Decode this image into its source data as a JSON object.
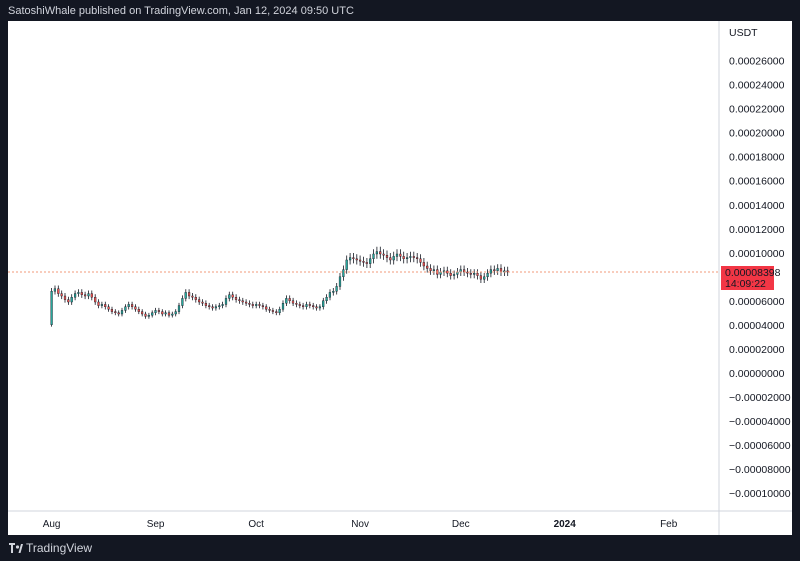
{
  "header": {
    "publisher_line": "SatoshiWhale published on TradingView.com, Jan 12, 2024 09:50 UTC"
  },
  "footer": {
    "brand": "TradingView",
    "logo_icon": "tradingview-logo-icon"
  },
  "colors": {
    "up": "#26a69a",
    "down": "#ef5350",
    "price_line": "#f0997a",
    "price_label": "#f23645"
  },
  "chart_data": {
    "type": "candlestick",
    "currency_label": "USDT",
    "y_ticks": [
      "0.00026000",
      "0.00024000",
      "0.00022000",
      "0.00020000",
      "0.00018000",
      "0.00016000",
      "0.00014000",
      "0.00012000",
      "0.00010000",
      "0.00006000",
      "0.00004000",
      "0.00002000",
      "0.00000000",
      "−0.00002000",
      "−0.00004000",
      "−0.00006000",
      "−0.00008000",
      "−0.00010000"
    ],
    "y_tick_values": [
      0.00026,
      0.00024,
      0.00022,
      0.0002,
      0.00018,
      0.00016,
      0.00014,
      0.00012,
      0.0001,
      6e-05,
      4e-05,
      2e-05,
      0,
      -2e-05,
      -4e-05,
      -6e-05,
      -8e-05,
      -0.0001
    ],
    "ylim": [
      -0.000115,
      0.000293
    ],
    "x_ticks": [
      {
        "label": "Aug",
        "day": 0
      },
      {
        "label": "Sep",
        "day": 31
      },
      {
        "label": "Oct",
        "day": 61
      },
      {
        "label": "Nov",
        "day": 92
      },
      {
        "label": "Dec",
        "day": 122
      },
      {
        "label": "2024",
        "day": 153,
        "bold": true
      },
      {
        "label": "Feb",
        "day": 184
      }
    ],
    "x_day_range": [
      -13,
      199
    ],
    "last_price": "0.00008398",
    "last_price_value": 8.398e-05,
    "countdown": "14:09:22",
    "close_series": [
      6.8e-05,
      7e-05,
      6.6e-05,
      6.4e-05,
      6.1e-05,
      5.9e-05,
      6.3e-05,
      6.6e-05,
      6.7e-05,
      6.5e-05,
      6.4e-05,
      6.6e-05,
      6.3e-05,
      5.9e-05,
      5.6e-05,
      5.7e-05,
      5.5e-05,
      5.3e-05,
      5.1e-05,
      5e-05,
      4.9e-05,
      5.2e-05,
      5.5e-05,
      5.7e-05,
      5.5e-05,
      5.3e-05,
      5.1e-05,
      4.9e-05,
      4.7e-05,
      4.8e-05,
      5e-05,
      5.2e-05,
      5.1e-05,
      4.9e-05,
      5e-05,
      4.8e-05,
      4.9e-05,
      5.1e-05,
      5.6e-05,
      6.2e-05,
      6.7e-05,
      6.4e-05,
      6.3e-05,
      6.1e-05,
      5.9e-05,
      5.8e-05,
      5.6e-05,
      5.5e-05,
      5.4e-05,
      5.5e-05,
      5.6e-05,
      5.7e-05,
      6.2e-05,
      6.5e-05,
      6.3e-05,
      6.1e-05,
      6e-05,
      5.9e-05,
      5.8e-05,
      5.7e-05,
      5.6e-05,
      5.7e-05,
      5.6e-05,
      5.5e-05,
      5.3e-05,
      5.2e-05,
      5.1e-05,
      5e-05,
      5.3e-05,
      5.8e-05,
      6.2e-05,
      6e-05,
      5.8e-05,
      5.7e-05,
      5.6e-05,
      5.5e-05,
      5.7e-05,
      5.6e-05,
      5.5e-05,
      5.4e-05,
      5.5e-05,
      6e-05,
      6.3e-05,
      6.7e-05,
      6.8e-05,
      7.2e-05,
      8e-05,
      8.6e-05,
      9.4e-05,
      9.6e-05,
      9.5e-05,
      9.4e-05,
      9.3e-05,
      9.2e-05,
      9.1e-05,
      9.5e-05,
      9.9e-05,
      0.000101,
      9.9e-05,
      9.8e-05,
      9.6e-05,
      9.4e-05,
      9.7e-05,
      9.9e-05,
      9.7e-05,
      9.5e-05,
      9.6e-05,
      9.7e-05,
      9.6e-05,
      9.5e-05,
      9.2e-05,
      8.9e-05,
      8.7e-05,
      8.5e-05,
      8.6e-05,
      8.2e-05,
      8.4e-05,
      8.5e-05,
      8.3e-05,
      8.1e-05,
      8.2e-05,
      8.4e-05,
      8.6e-05,
      8.4e-05,
      8.3e-05,
      8.2e-05,
      8.3e-05,
      8.1e-05,
      7.8e-05,
      8e-05,
      8.3e-05,
      8.6e-05,
      8.5e-05,
      8.7e-05,
      8.4e-05,
      8.5e-05,
      8.4e-05
    ]
  }
}
